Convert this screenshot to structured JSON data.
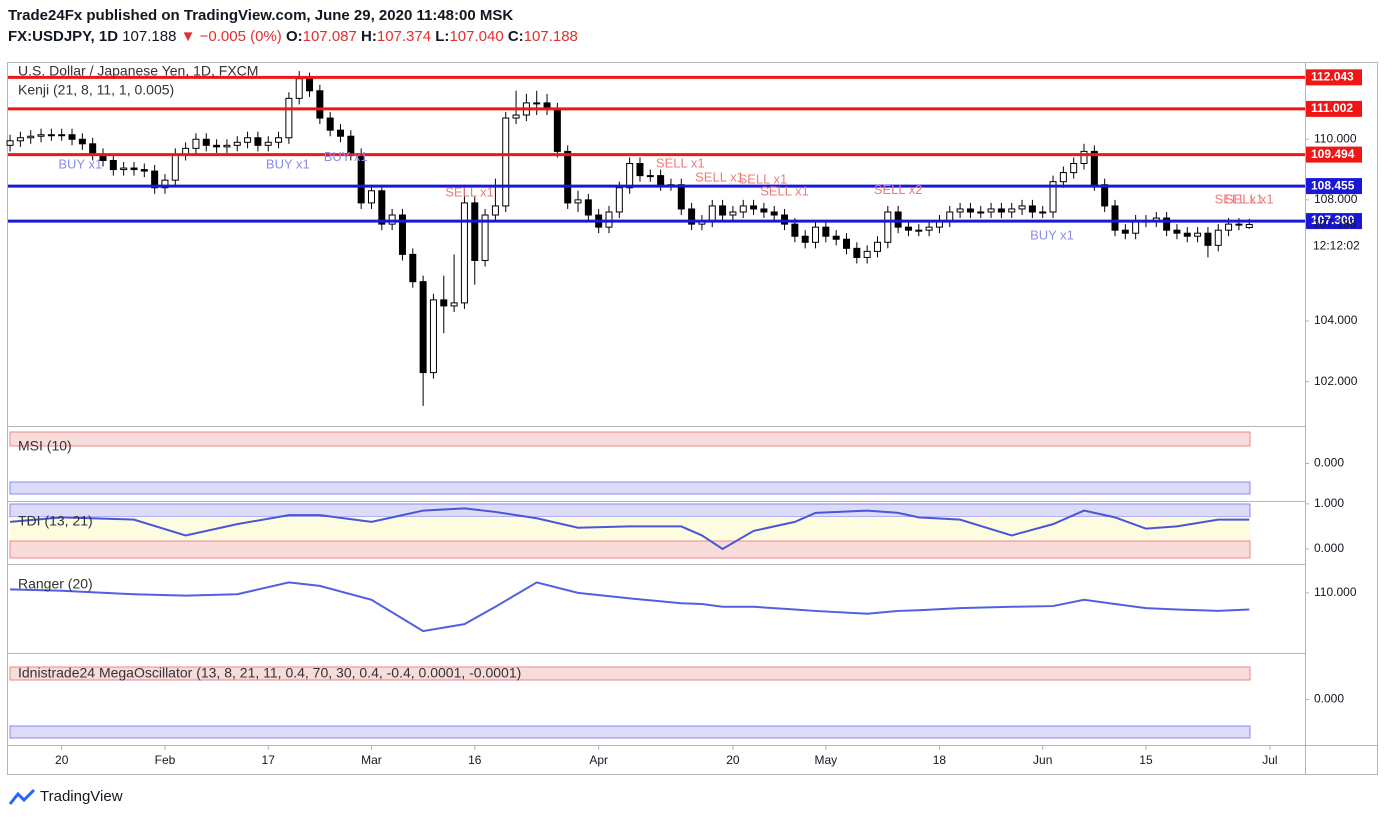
{
  "header": {
    "publisher": "Trade24Fx published on TradingView.com, June 29, 2020 11:48:00 MSK",
    "symbol": "FX:USDJPY, 1D",
    "last": "107.188",
    "change": "▼ −0.005 (0%)",
    "o_label": "O:",
    "o": "107.087",
    "h_label": "H:",
    "h": "107.374",
    "l_label": "L:",
    "l": "107.040",
    "c_label": "C:",
    "c": "107.188"
  },
  "chart_data": [
    {
      "type": "candlestick",
      "title": "U.S. Dollar / Japanese Yen, 1D, FXCM",
      "subtitle": "Kenji (21, 8, 11, 1, 0.005)",
      "up_color": "#ffffff",
      "down_color": "#000000",
      "open": [
        109.8,
        109.95,
        110.05,
        110.1,
        110.15,
        110.15,
        110.15,
        110.0,
        109.85,
        109.5,
        109.3,
        109.0,
        109.05,
        109.0,
        108.95,
        108.4,
        108.65,
        109.5,
        109.7,
        110.0,
        109.8,
        109.75,
        109.8,
        109.9,
        110.05,
        109.8,
        109.9,
        110.05,
        111.35,
        112.0,
        111.6,
        110.7,
        110.3,
        110.1,
        109.5,
        107.9,
        108.3,
        107.2,
        107.5,
        106.2,
        105.3,
        102.3,
        104.7,
        104.5,
        104.6,
        107.9,
        106.0,
        107.5,
        107.8,
        110.7,
        110.8,
        111.2,
        111.2,
        111.0,
        109.6,
        107.9,
        108.0,
        107.5,
        107.1,
        107.6,
        108.4,
        109.2,
        108.8,
        108.8,
        108.5,
        108.5,
        107.7,
        107.2,
        107.3,
        107.8,
        107.5,
        107.6,
        107.8,
        107.7,
        107.6,
        107.5,
        107.2,
        106.8,
        106.6,
        107.1,
        106.8,
        106.7,
        106.4,
        106.1,
        106.3,
        106.6,
        107.6,
        107.1,
        107.0,
        107.0,
        107.1,
        107.3,
        107.6,
        107.7,
        107.6,
        107.6,
        107.7,
        107.6,
        107.7,
        107.8,
        107.6,
        107.6,
        108.6,
        108.9,
        109.2,
        109.6,
        108.5,
        107.8,
        107.0,
        106.9,
        107.3,
        107.3,
        107.4,
        107.0,
        106.9,
        106.8,
        106.9,
        106.5,
        107.0,
        107.2,
        107.087
      ],
      "high": [
        110.15,
        110.25,
        110.3,
        110.35,
        110.35,
        110.35,
        110.35,
        110.2,
        110.05,
        109.7,
        109.5,
        109.25,
        109.25,
        109.2,
        109.15,
        108.85,
        109.7,
        109.9,
        110.2,
        110.2,
        110.0,
        110.0,
        110.1,
        110.25,
        110.25,
        110.1,
        110.25,
        111.55,
        112.25,
        112.2,
        111.8,
        110.9,
        110.5,
        110.3,
        109.7,
        108.5,
        108.5,
        107.7,
        107.7,
        106.4,
        105.5,
        104.9,
        105.5,
        106.2,
        108.5,
        108.1,
        107.7,
        108.7,
        110.9,
        111.6,
        111.5,
        111.6,
        111.5,
        111.2,
        109.8,
        108.3,
        108.2,
        107.7,
        107.8,
        108.6,
        109.4,
        109.4,
        109.0,
        109.0,
        108.7,
        108.7,
        107.9,
        107.5,
        108.0,
        108.0,
        107.8,
        108.0,
        108.0,
        107.9,
        107.8,
        107.7,
        107.4,
        107.0,
        107.3,
        107.3,
        107.0,
        106.9,
        106.6,
        106.5,
        106.8,
        107.8,
        107.8,
        107.3,
        107.2,
        107.3,
        107.5,
        107.8,
        107.9,
        107.9,
        107.8,
        107.9,
        107.9,
        107.9,
        108.0,
        108.0,
        107.8,
        108.8,
        109.1,
        109.4,
        109.85,
        109.8,
        108.7,
        108.0,
        107.2,
        107.5,
        107.5,
        107.6,
        107.6,
        107.2,
        107.1,
        107.1,
        107.1,
        107.2,
        107.4,
        107.4,
        107.374
      ],
      "low": [
        109.6,
        109.75,
        109.85,
        109.9,
        109.95,
        109.95,
        109.8,
        109.65,
        109.3,
        109.1,
        108.8,
        108.8,
        108.8,
        108.75,
        108.2,
        108.2,
        108.45,
        109.3,
        109.5,
        109.6,
        109.55,
        109.55,
        109.6,
        109.7,
        109.6,
        109.6,
        109.7,
        109.85,
        111.15,
        111.4,
        110.5,
        110.1,
        109.9,
        109.3,
        107.7,
        107.7,
        107.0,
        107.0,
        106.0,
        105.1,
        101.2,
        102.1,
        103.6,
        104.3,
        104.4,
        105.2,
        105.8,
        107.3,
        107.6,
        110.5,
        110.6,
        110.8,
        110.8,
        109.4,
        107.7,
        107.6,
        107.3,
        106.9,
        106.9,
        107.4,
        108.2,
        108.6,
        108.6,
        108.3,
        108.3,
        107.5,
        107.0,
        107.0,
        107.1,
        107.3,
        107.3,
        107.4,
        107.5,
        107.4,
        107.3,
        107.0,
        106.6,
        106.4,
        106.4,
        106.6,
        106.5,
        106.2,
        105.9,
        105.9,
        106.1,
        106.4,
        106.9,
        106.8,
        106.8,
        106.8,
        106.9,
        107.1,
        107.4,
        107.4,
        107.4,
        107.4,
        107.4,
        107.4,
        107.5,
        107.4,
        107.4,
        107.4,
        108.4,
        108.7,
        109.0,
        108.3,
        107.6,
        106.8,
        106.7,
        106.7,
        107.1,
        107.1,
        106.8,
        106.7,
        106.6,
        106.6,
        106.1,
        106.3,
        106.8,
        107.0,
        107.04
      ],
      "close": [
        109.95,
        110.05,
        110.1,
        110.15,
        110.15,
        110.15,
        110.0,
        109.85,
        109.5,
        109.3,
        109.0,
        109.05,
        109.0,
        108.95,
        108.4,
        108.65,
        109.5,
        109.7,
        110.0,
        109.8,
        109.75,
        109.8,
        109.9,
        110.05,
        109.8,
        109.9,
        110.05,
        111.35,
        112.0,
        111.6,
        110.7,
        110.3,
        110.1,
        109.5,
        107.9,
        108.3,
        107.2,
        107.5,
        106.2,
        105.3,
        102.3,
        104.7,
        104.5,
        104.6,
        107.9,
        106.0,
        107.5,
        107.8,
        110.7,
        110.8,
        111.2,
        111.2,
        111.0,
        109.6,
        107.9,
        108.0,
        107.5,
        107.1,
        107.6,
        108.4,
        109.2,
        108.8,
        108.8,
        108.5,
        108.5,
        107.7,
        107.2,
        107.3,
        107.8,
        107.5,
        107.6,
        107.8,
        107.7,
        107.6,
        107.5,
        107.2,
        106.8,
        106.6,
        107.1,
        106.8,
        106.7,
        106.4,
        106.1,
        106.3,
        106.6,
        107.6,
        107.1,
        107.0,
        107.0,
        107.1,
        107.3,
        107.6,
        107.7,
        107.6,
        107.6,
        107.7,
        107.6,
        107.7,
        107.8,
        107.6,
        107.6,
        108.6,
        108.9,
        109.2,
        109.6,
        108.5,
        107.8,
        107.0,
        106.9,
        107.3,
        107.3,
        107.4,
        107.0,
        106.9,
        106.8,
        106.9,
        106.5,
        107.0,
        107.2,
        107.2,
        107.188
      ],
      "xlim": [
        -0.2,
        125.4
      ],
      "ylim": [
        100.57,
        112.55
      ],
      "xticks": [
        {
          "value": 5,
          "label": "20"
        },
        {
          "value": 15,
          "label": "Feb"
        },
        {
          "value": 25,
          "label": "17"
        },
        {
          "value": 35,
          "label": "Mar"
        },
        {
          "value": 45,
          "label": "16"
        },
        {
          "value": 57,
          "label": "Apr"
        },
        {
          "value": 70,
          "label": "20"
        },
        {
          "value": 79,
          "label": "May"
        },
        {
          "value": 90,
          "label": "18"
        },
        {
          "value": 100,
          "label": "Jun"
        },
        {
          "value": 110,
          "label": "15"
        },
        {
          "value": 122,
          "label": "Jul"
        }
      ],
      "yticks": [
        {
          "value": 110,
          "label": "110.000"
        },
        {
          "value": 108,
          "label": "108.000"
        },
        {
          "value": 104,
          "label": "104.000"
        },
        {
          "value": 102,
          "label": "102.000"
        }
      ],
      "levels": [
        {
          "value": 112.043,
          "label": "112.043",
          "color": "#f01616"
        },
        {
          "value": 111.002,
          "label": "111.002",
          "color": "#f01616"
        },
        {
          "value": 109.494,
          "label": "109.494",
          "color": "#f01616"
        },
        {
          "value": 108.455,
          "label": "108.455",
          "color": "#1a18d6"
        },
        {
          "value": 107.3,
          "label": "107.300",
          "color": "#1a18d6"
        }
      ],
      "last_price": {
        "value": 107.188,
        "label": "107.188"
      },
      "countdown": "12:12:02",
      "annotations": [
        {
          "text": "BUY x1",
          "x": 6.8,
          "y": 109.15,
          "color": "#8c8ce6"
        },
        {
          "text": "BUY x1",
          "x": 26.9,
          "y": 109.15,
          "color": "#8c8ce6"
        },
        {
          "text": "BUY x1",
          "x": 32.5,
          "y": 109.4,
          "color": "#8c8ce6"
        },
        {
          "text": "SELL x1",
          "x": 44.5,
          "y": 108.22,
          "color": "#ef7a7a"
        },
        {
          "text": "SELL x1",
          "x": 64.9,
          "y": 109.18,
          "color": "#ef7a7a"
        },
        {
          "text": "SELL x1",
          "x": 68.7,
          "y": 108.72,
          "color": "#ef7a7a"
        },
        {
          "text": "SELL x1",
          "x": 72.9,
          "y": 108.65,
          "color": "#ef7a7a"
        },
        {
          "text": "SELL x1",
          "x": 75,
          "y": 108.25,
          "color": "#ef7a7a"
        },
        {
          "text": "SELL x2",
          "x": 86,
          "y": 108.3,
          "color": "#ef7a7a"
        },
        {
          "text": "BUY x1",
          "x": 100.9,
          "y": 106.8,
          "color": "#8c8ce6"
        },
        {
          "text": "SELL x1",
          "x": 119,
          "y": 108.0,
          "color": "#ef7a7a"
        },
        {
          "text": "SELL x1",
          "x": 120,
          "y": 108.0,
          "color": "#ef7a7a"
        }
      ]
    },
    {
      "type": "pane",
      "title": "MSI (10)",
      "ylim": [
        -1,
        1
      ],
      "yticks": [
        {
          "value": 0,
          "label": "0.000"
        }
      ]
    },
    {
      "type": "line",
      "title": "TDI (13, 21)",
      "color": "#4a56d6",
      "ylim": [
        -0.31,
        1.04
      ],
      "yticks": [
        {
          "value": 1,
          "label": "1.000"
        },
        {
          "value": 0,
          "label": "0.000"
        }
      ],
      "x": [
        0,
        5,
        12,
        17,
        22,
        27,
        30,
        35,
        40,
        44,
        47,
        51,
        55,
        60,
        65,
        67,
        69,
        72,
        76,
        78,
        83,
        86,
        88,
        92,
        97,
        101,
        104,
        107,
        110,
        113,
        117,
        120
      ],
      "values": [
        0.6,
        0.7,
        0.65,
        0.3,
        0.55,
        0.75,
        0.75,
        0.6,
        0.85,
        0.9,
        0.82,
        0.68,
        0.47,
        0.5,
        0.5,
        0.3,
        0.0,
        0.4,
        0.6,
        0.8,
        0.85,
        0.8,
        0.7,
        0.65,
        0.3,
        0.55,
        0.85,
        0.7,
        0.45,
        0.5,
        0.65,
        0.65
      ]
    },
    {
      "type": "line",
      "title": "Ranger (20)",
      "color": "#5060e0",
      "ylim": [
        101.5,
        114
      ],
      "yticks": [
        {
          "value": 110,
          "label": "110.000"
        }
      ],
      "x": [
        0,
        5,
        12,
        17,
        22,
        27,
        30,
        35,
        40,
        44,
        47,
        51,
        55,
        60,
        65,
        67,
        69,
        72,
        76,
        78,
        83,
        86,
        88,
        92,
        97,
        101,
        104,
        107,
        110,
        113,
        117,
        120
      ],
      "values": [
        110.5,
        110.3,
        109.8,
        109.6,
        109.8,
        111.5,
        111,
        109,
        104.5,
        105.5,
        108,
        111.5,
        110,
        109.2,
        108.5,
        108.4,
        108,
        108,
        107.6,
        107.4,
        107,
        107.4,
        107.5,
        107.8,
        108,
        108.1,
        109,
        108.4,
        107.8,
        107.6,
        107.4,
        107.6
      ]
    },
    {
      "type": "pane",
      "title": "Idnistrade24 MegaOscillator (13, 8, 21, 11, 0.4, 70, 30, 0.4, -0.4, 0.0001, -0.0001)",
      "ylim": [
        -1,
        1
      ],
      "yticks": [
        {
          "value": 0,
          "label": "0.000"
        }
      ]
    }
  ],
  "footer": {
    "brand": "TradingView"
  }
}
